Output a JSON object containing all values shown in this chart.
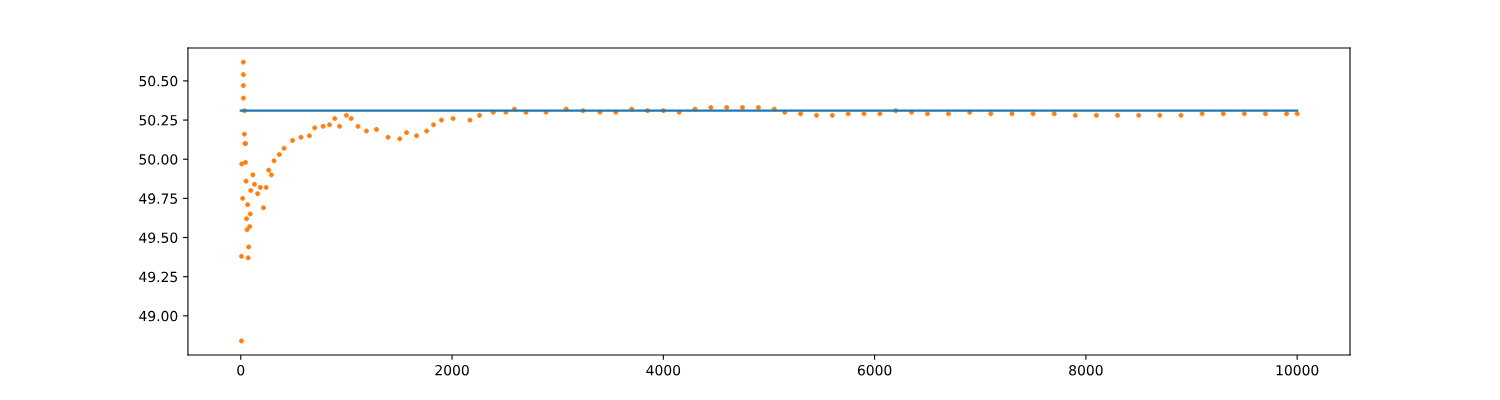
{
  "chart_data": {
    "type": "scatter",
    "xlim": [
      -500,
      10500
    ],
    "xticks": [
      0,
      2000,
      4000,
      6000,
      8000,
      10000
    ],
    "ylim": [
      48.75,
      50.71
    ],
    "yticks": [
      {
        "value": 49.0,
        "label": "49.00"
      },
      {
        "value": 49.25,
        "label": "49.25"
      },
      {
        "value": 49.5,
        "label": "49.50"
      },
      {
        "value": 49.75,
        "label": "49.75"
      },
      {
        "value": 50.0,
        "label": "50.00"
      },
      {
        "value": 50.25,
        "label": "50.25"
      },
      {
        "value": 50.5,
        "label": "50.50"
      }
    ],
    "grid": false,
    "legend": false,
    "series": [
      {
        "type": "line",
        "color": "#1f77b4",
        "x": [
          0,
          10000
        ],
        "values": [
          50.31,
          50.31
        ]
      },
      {
        "color": "#ff7f0e",
        "marker": "circle",
        "x": [
          7,
          7,
          10,
          18,
          25,
          25,
          25,
          25,
          35,
          35,
          40,
          45,
          45,
          50,
          55,
          60,
          65,
          70,
          75,
          85,
          90,
          95,
          115,
          130,
          160,
          185,
          215,
          240,
          265,
          290,
          315,
          365,
          410,
          490,
          570,
          650,
          700,
          780,
          840,
          890,
          935,
          1000,
          1045,
          1110,
          1190,
          1285,
          1395,
          1505,
          1570,
          1665,
          1760,
          1825,
          1900,
          2010,
          2170,
          2260,
          2390,
          2510,
          2590,
          2700,
          2890,
          3080,
          3240,
          3400,
          3550,
          3700,
          3850,
          4000,
          4150,
          4300,
          4450,
          4600,
          4750,
          4900,
          5050,
          5150,
          5300,
          5450,
          5600,
          5750,
          5900,
          6050,
          6200,
          6350,
          6500,
          6700,
          6900,
          7100,
          7300,
          7500,
          7700,
          7900,
          8100,
          8300,
          8500,
          8700,
          8900,
          9100,
          9300,
          9500,
          9700,
          9900,
          10000
        ],
        "values": [
          48.84,
          49.38,
          49.97,
          49.75,
          50.62,
          50.54,
          50.47,
          50.39,
          50.31,
          50.16,
          50.1,
          50.1,
          49.98,
          49.86,
          49.62,
          49.55,
          49.71,
          49.37,
          49.44,
          49.57,
          49.65,
          49.8,
          49.9,
          49.84,
          49.78,
          49.82,
          49.69,
          49.82,
          49.93,
          49.9,
          49.99,
          50.03,
          50.07,
          50.12,
          50.14,
          50.15,
          50.2,
          50.21,
          50.22,
          50.26,
          50.21,
          50.28,
          50.26,
          50.21,
          50.18,
          50.19,
          50.14,
          50.13,
          50.17,
          50.15,
          50.18,
          50.22,
          50.25,
          50.26,
          50.25,
          50.28,
          50.3,
          50.3,
          50.32,
          50.3,
          50.3,
          50.32,
          50.31,
          50.3,
          50.3,
          50.32,
          50.31,
          50.31,
          50.3,
          50.32,
          50.33,
          50.33,
          50.33,
          50.33,
          50.32,
          50.3,
          50.29,
          50.28,
          50.28,
          50.29,
          50.29,
          50.29,
          50.31,
          50.3,
          50.29,
          50.29,
          50.3,
          50.29,
          50.29,
          50.29,
          50.29,
          50.28,
          50.28,
          50.28,
          50.28,
          50.28,
          50.28,
          50.29,
          50.29,
          50.29,
          50.29,
          50.29,
          50.29
        ]
      }
    ]
  }
}
